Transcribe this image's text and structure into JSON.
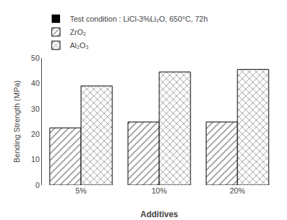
{
  "chart_data": {
    "type": "bar",
    "xlabel": "Additives",
    "ylabel": "Bending Strength (MPa)",
    "categories": [
      "5%",
      "10%",
      "20%"
    ],
    "series": [
      {
        "name": "ZrO₂",
        "color": "#ffffff",
        "values": [
          22.5,
          24.8,
          24.8
        ]
      },
      {
        "name": "Al₂O₃",
        "color": "#ffffff",
        "values": [
          39.0,
          44.5,
          45.5
        ]
      }
    ],
    "annotations": [
      "Test condition : LiCl-3%Li₂O, 650°C, 72h"
    ],
    "ylim": [
      0,
      50
    ],
    "yticks": [
      0,
      10,
      20,
      30,
      40,
      50
    ],
    "grid": false
  }
}
